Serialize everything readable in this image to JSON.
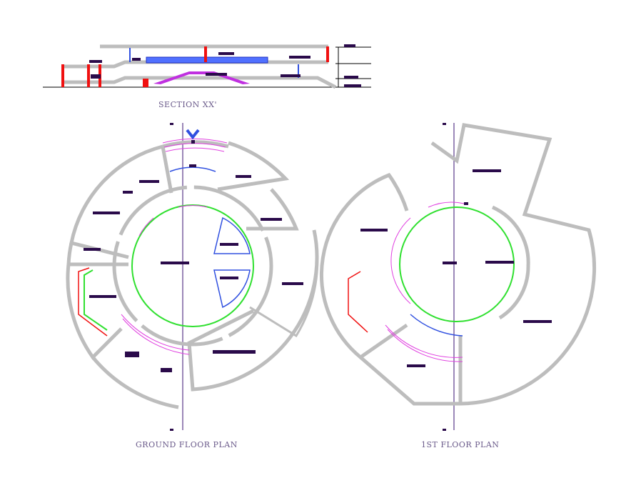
{
  "drawing": {
    "section_title": "SECTION XX'",
    "ground_floor_title": "GROUND FLOOR PLAN",
    "first_floor_title": "1ST FLOOR PLAN"
  },
  "colors": {
    "walls": "#bdbdbd",
    "columns": "#f01010",
    "ramps": "#e040e0",
    "circulation_ring": "#30e030",
    "glazing": "#3050e0",
    "room_tags": "#2a0a4a",
    "section_cut_line": "#5a3a8a"
  }
}
